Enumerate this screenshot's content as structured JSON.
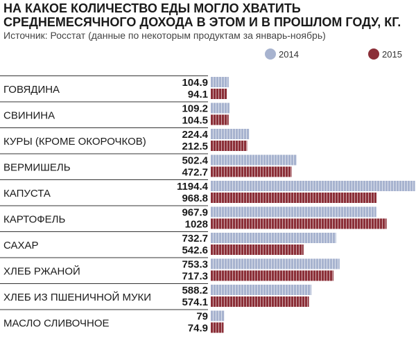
{
  "chart_data": {
    "type": "bar",
    "orientation": "horizontal",
    "title": "НА КАКОЕ КОЛИЧЕСТВО ЕДЫ МОГЛО ХВАТИТЬ\nСРЕДНЕМЕСЯЧНОГО ДОХОДА В ЭТОМ И В ПРОШЛОМ ГОДУ, КГ.",
    "subtitle": "Источник: Росстат (данные по некоторым продуктам за январь-ноябрь)",
    "categories": [
      "ГОВЯДИНА",
      "СВИНИНА",
      "КУРЫ (КРОМЕ ОКОРОЧКОВ)",
      "ВЕРМИШЕЛЬ",
      "КАПУСТА",
      "КАРТОФЕЛЬ",
      "САХАР",
      "ХЛЕБ РЖАНОЙ",
      "ХЛЕБ ИЗ ПШЕНИЧНОЙ МУКИ",
      "МАСЛО СЛИВОЧНОЕ"
    ],
    "series": [
      {
        "name": "2014",
        "color": "#a7b3cf",
        "values": [
          104.9,
          109.2,
          224.4,
          502.4,
          1194.4,
          967.9,
          732.7,
          753.3,
          588.2,
          79
        ],
        "labels": [
          "104.9",
          "109.2",
          "224.4",
          "502.4",
          "1194.4",
          "967.9",
          "732.7",
          "753.3",
          "588.2",
          "79"
        ]
      },
      {
        "name": "2015",
        "color": "#8b2f38",
        "values": [
          94.1,
          104.5,
          212.5,
          472.7,
          968.8,
          1028,
          542.6,
          717.3,
          574.1,
          74.9
        ],
        "labels": [
          "94.1",
          "104.5",
          "212.5",
          "472.7",
          "968.8",
          "1028",
          "542.6",
          "717.3",
          "574.1",
          "74.9"
        ]
      }
    ],
    "legend_position": "top-right",
    "grid": false,
    "xlim": [
      0,
      1200
    ]
  }
}
